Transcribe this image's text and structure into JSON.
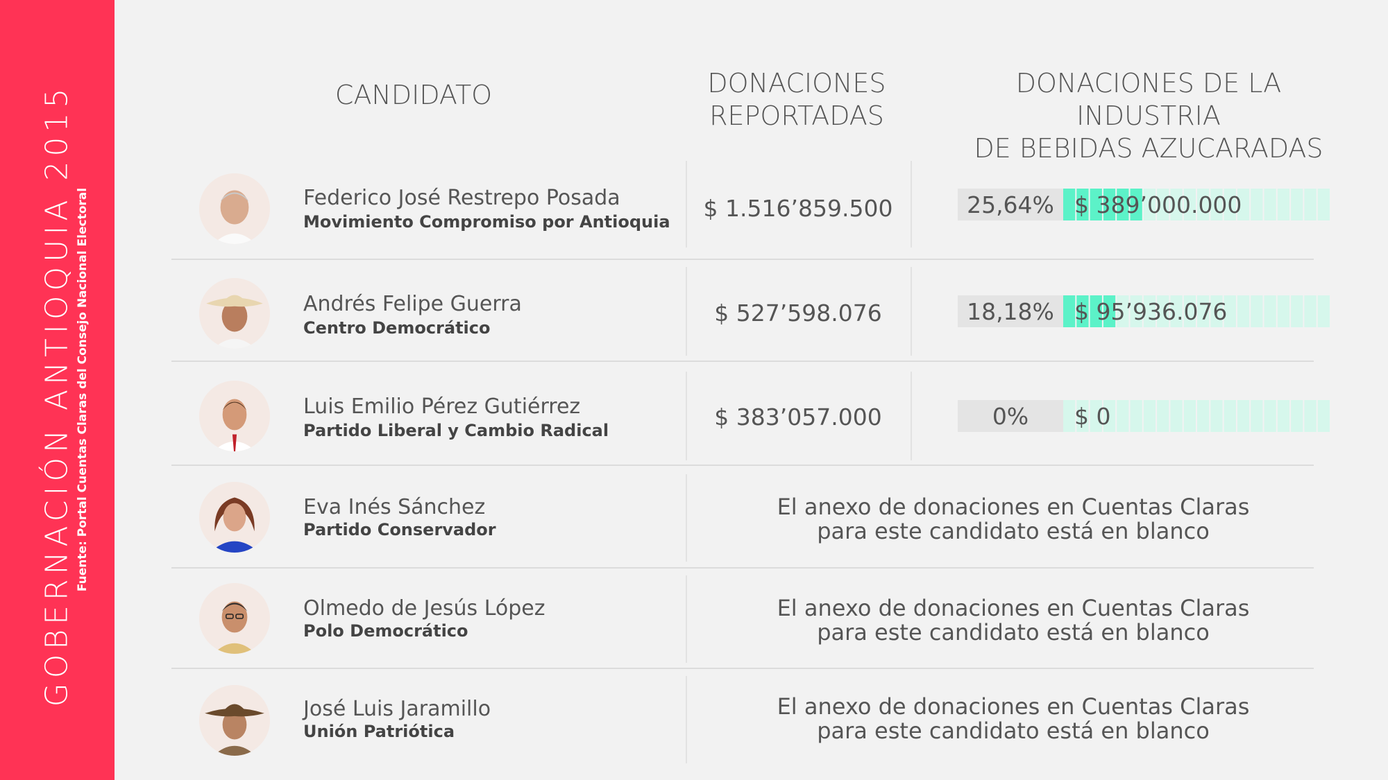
{
  "sidebar": {
    "title": "GOBERNACIÓN ANTIOQUIA 2015",
    "source": "Fuente: Portal Cuentas Claras del Consejo Nacional Electoral",
    "bg_color": "#ff3355"
  },
  "headers": {
    "candidate": "CANDIDATO",
    "donations": [
      "DONACIONES",
      "REPORTADAS"
    ],
    "industry": [
      "DONACIONES DE LA INDUSTRIA",
      "DE BEBIDAS AZUCARADAS"
    ]
  },
  "rows": [
    {
      "name": "Federico José Restrepo Posada",
      "party": "Movimiento Compromiso por Antioquia",
      "amount": "$ 1.516’859.500",
      "industry_pct": "25,64%",
      "industry_amount": "$ 389’000.000"
    },
    {
      "name": "Andrés Felipe Guerra",
      "party": "Centro Democrático",
      "amount": "$ 527’598.076",
      "industry_pct": "18,18%",
      "industry_amount": "$ 95’936.076"
    },
    {
      "name": "Luis Emilio Pérez Gutiérrez",
      "party": "Partido Liberal y Cambio Radical",
      "amount": "$ 383’057.000",
      "industry_pct": "0%",
      "industry_amount": "$ 0"
    },
    {
      "name": "Eva Inés Sánchez",
      "party": "Partido Conservador",
      "note": [
        "El anexo de donaciones en Cuentas Claras",
        "para este candidato está en blanco"
      ]
    },
    {
      "name": "Olmedo de Jesús López",
      "party": "Polo Democrático",
      "note": [
        "El anexo de donaciones en Cuentas Claras",
        "para este candidato está en blanco"
      ]
    },
    {
      "name": "José Luis Jaramillo",
      "party": "Unión Patriótica",
      "note": [
        "El anexo de donaciones en Cuentas Claras",
        "para este candidato está en blanco"
      ]
    }
  ],
  "chart_data": {
    "type": "bar",
    "categories": [
      "Federico José Restrepo Posada",
      "Andrés Felipe Guerra",
      "Luis Emilio Pérez Gutiérrez"
    ],
    "series": [
      {
        "values": [
          25.64,
          18.18,
          0
        ]
      }
    ],
    "donaciones_reportadas": [
      1516859500,
      527598076,
      383057000
    ],
    "donaciones_industria": [
      389000000,
      95936076,
      0
    ],
    "ylim": [
      0,
      100
    ],
    "segments_total": 20,
    "colors": {
      "filled": "#5cf2c8",
      "empty": "#d6f7ec",
      "label_bg": "#e4e4e4"
    }
  }
}
